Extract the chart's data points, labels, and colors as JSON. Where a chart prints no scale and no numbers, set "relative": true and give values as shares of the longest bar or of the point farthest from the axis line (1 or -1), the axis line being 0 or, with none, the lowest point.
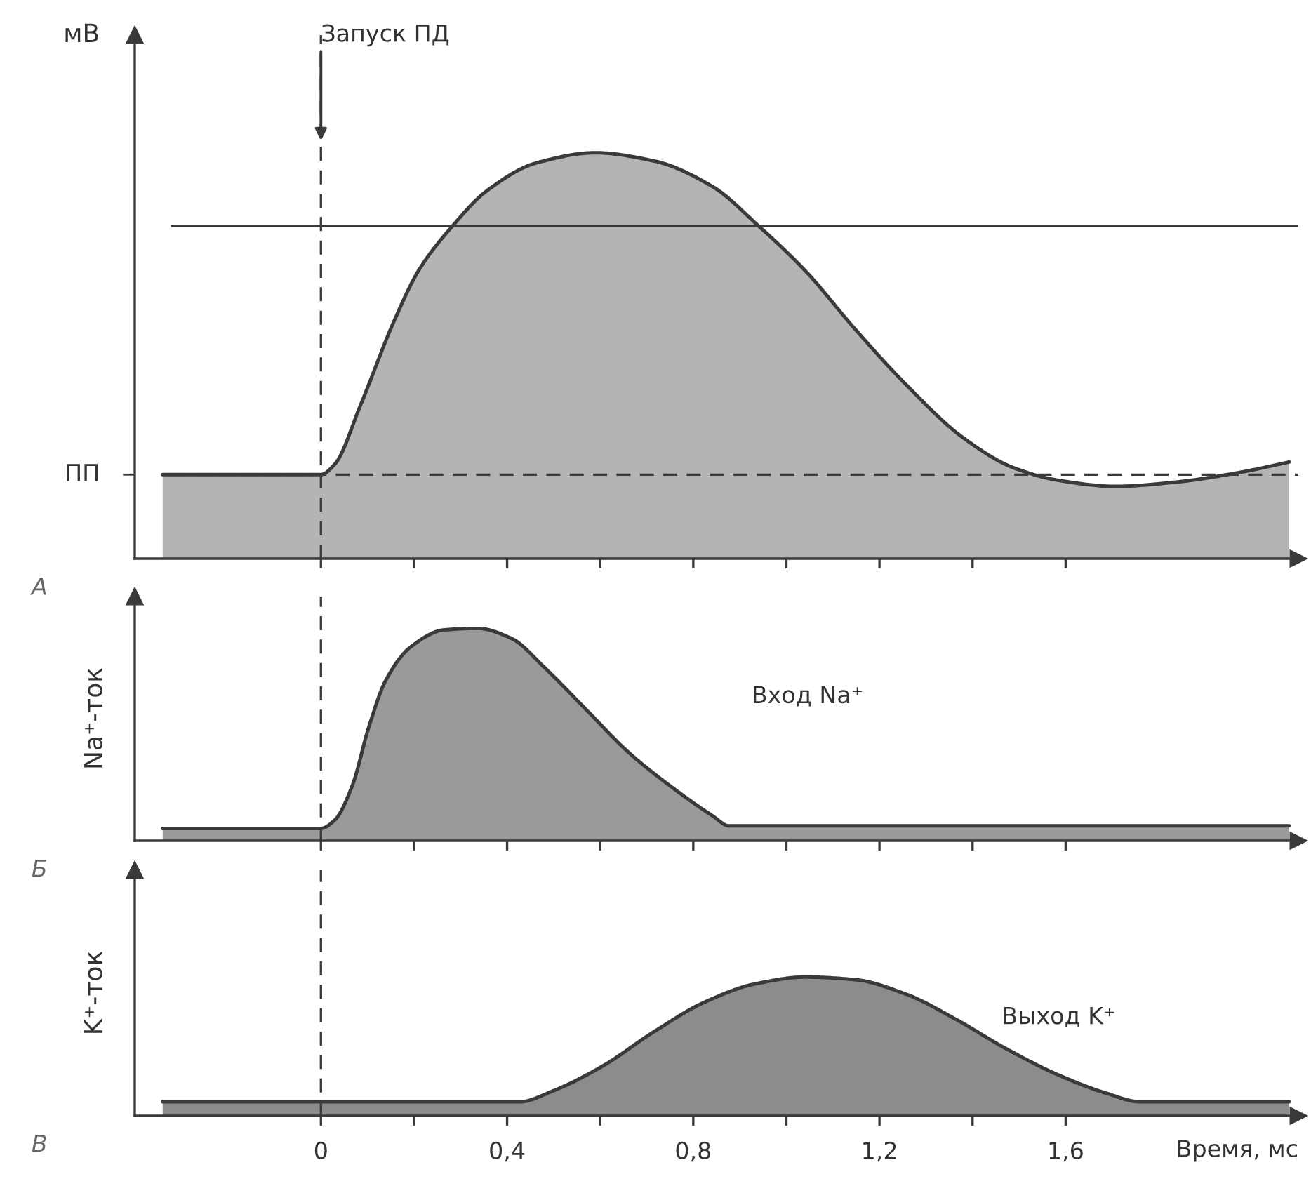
{
  "chart_data": [
    {
      "type": "area",
      "relative": true,
      "ylabel": "мВ",
      "color": "#b4b4b4",
      "x": [
        -0.34,
        0,
        0.03,
        0.085,
        0.157,
        0.21,
        0.283,
        0.355,
        0.463,
        0.589,
        0.715,
        0.841,
        0.94,
        1.04,
        1.148,
        1.256,
        1.382,
        1.49,
        1.589,
        1.706,
        1.832,
        1.977,
        2.08
      ],
      "values": [
        0.207,
        0.207,
        0.233,
        0.378,
        0.585,
        0.71,
        0.82,
        0.905,
        0.975,
        1.0,
        0.98,
        0.917,
        0.82,
        0.71,
        0.565,
        0.43,
        0.296,
        0.223,
        0.192,
        0.178,
        0.188,
        0.213,
        0.238
      ],
      "xlim": [
        -0.4,
        2.1
      ],
      "xticks": [
        {
          "value": 0,
          "label": null
        },
        {
          "value": 0.2,
          "label": null
        },
        {
          "value": 0.4,
          "label": null
        },
        {
          "value": 0.6,
          "label": null
        },
        {
          "value": 0.8,
          "label": null
        },
        {
          "value": 1.0,
          "label": null
        },
        {
          "value": 1.2,
          "label": null
        },
        {
          "value": 1.4,
          "label": null
        },
        {
          "value": 1.6,
          "label": null
        }
      ],
      "tick_labels": false,
      "ref_lines": [
        {
          "axis": "y",
          "value": 0.207,
          "label": "ПП",
          "line_style": "dashed",
          "color": "#3a3a3a"
        },
        {
          "axis": "y",
          "value": 0.82,
          "color": "#3a3a3a",
          "line_style": "solid"
        },
        {
          "axis": "x",
          "value": 0,
          "line_style": "dashed",
          "color": "#3a3a3a"
        }
      ],
      "annotations": [
        "А",
        {
          "text": "Запуск ПД",
          "x": 0,
          "y": 1.03
        }
      ]
    },
    {
      "type": "area",
      "relative": true,
      "ylabel": "Na⁺-ток",
      "color": "#9a9a9a",
      "x": [
        -0.34,
        0,
        0.03,
        0.067,
        0.103,
        0.139,
        0.193,
        0.265,
        0.337,
        0.409,
        0.481,
        0.571,
        0.661,
        0.751,
        0.841,
        0.877,
        2.08
      ],
      "values": [
        0.058,
        0.058,
        0.098,
        0.257,
        0.536,
        0.754,
        0.913,
        0.993,
        1.0,
        0.953,
        0.814,
        0.615,
        0.416,
        0.257,
        0.118,
        0.07,
        0.07
      ],
      "xlim": [
        -0.4,
        2.1
      ],
      "xticks": [
        {
          "value": 0,
          "label": null
        },
        {
          "value": 0.2,
          "label": null
        },
        {
          "value": 0.4,
          "label": null
        },
        {
          "value": 0.6,
          "label": null
        },
        {
          "value": 0.8,
          "label": null
        },
        {
          "value": 1.0,
          "label": null
        },
        {
          "value": 1.2,
          "label": null
        },
        {
          "value": 1.4,
          "label": null
        },
        {
          "value": 1.6,
          "label": null
        }
      ],
      "tick_labels": false,
      "ref_lines": [
        {
          "axis": "x",
          "value": 0,
          "line_style": "dashed",
          "color": "#3a3a3a"
        }
      ],
      "annotations": [
        "Б",
        "Вход Na⁺"
      ]
    },
    {
      "type": "area",
      "relative": true,
      "ylabel": "K⁺-ток",
      "xlabel": "Время, мс",
      "color": "#8c8c8c",
      "x": [
        -0.34,
        0,
        0.427,
        0.499,
        0.607,
        0.715,
        0.823,
        0.932,
        1.04,
        1.148,
        1.256,
        1.364,
        1.472,
        1.58,
        1.688,
        1.76,
        2.08
      ],
      "values": [
        0.101,
        0.101,
        0.101,
        0.18,
        0.362,
        0.605,
        0.817,
        0.95,
        1.0,
        0.981,
        0.878,
        0.696,
        0.484,
        0.301,
        0.162,
        0.101,
        0.101
      ],
      "xlim": [
        -0.4,
        2.1
      ],
      "xticks": [
        0,
        {
          "value": 0.2,
          "label": null
        },
        {
          "value": 0.4,
          "label": "0,4"
        },
        {
          "value": 0.6,
          "label": null
        },
        {
          "value": 0.8,
          "label": "0,8"
        },
        {
          "value": 1.0,
          "label": null
        },
        {
          "value": 1.2,
          "label": "1,2"
        },
        {
          "value": 1.4,
          "label": null
        },
        {
          "value": 1.6,
          "label": "1,6"
        }
      ],
      "tick_labels": "x",
      "ref_lines": [
        {
          "axis": "x",
          "value": 0,
          "line_style": "dashed",
          "color": "#3a3a3a"
        }
      ],
      "annotations": [
        "В",
        "Выход K⁺"
      ]
    }
  ]
}
